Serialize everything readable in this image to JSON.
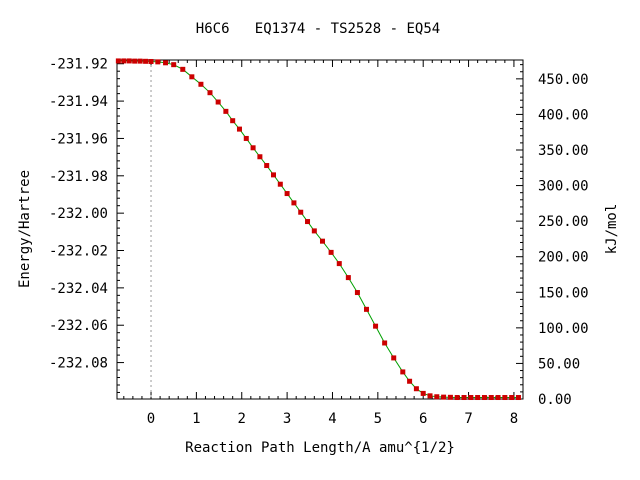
{
  "chart_data": {
    "type": "line",
    "title": "H6C6   EQ1374 - TS2528 - EQ54",
    "xlabel": "Reaction Path Length/A amu^{1/2}",
    "ylabel": "Energy/Hartree",
    "y2label": "kJ/mol",
    "xlim": [
      -0.75,
      8.2
    ],
    "ylim": [
      -232.0995,
      -231.918
    ],
    "y2lim": [
      0.0,
      476.5
    ],
    "x_ticks": [
      0,
      1,
      2,
      3,
      4,
      5,
      6,
      7,
      8
    ],
    "x_tick_labels": [
      "0",
      "1",
      "2",
      "3",
      "4",
      "5",
      "6",
      "7",
      "8"
    ],
    "y_ticks": [
      -231.92,
      -231.94,
      -231.96,
      -231.98,
      -232.0,
      -232.02,
      -232.04,
      -232.06,
      -232.08
    ],
    "y_tick_labels": [
      "-231.92",
      "-231.94",
      "-231.96",
      "-231.98",
      "-232.00",
      "-232.02",
      "-232.04",
      "-232.06",
      "-232.08"
    ],
    "y2_ticks": [
      0,
      50,
      100,
      150,
      200,
      250,
      300,
      350,
      400,
      450
    ],
    "y2_tick_labels": [
      "0.00",
      "50.00",
      "100.00",
      "150.00",
      "200.00",
      "250.00",
      "300.00",
      "350.00",
      "400.00",
      "450.00"
    ],
    "reference_line_x": 0,
    "colors": {
      "line": "#00a000",
      "marker": "#cc0000",
      "reference": "#999999",
      "axis": "#000000"
    },
    "series": [
      {
        "x": [
          -0.72,
          -0.6,
          -0.48,
          -0.36,
          -0.24,
          -0.12,
          0.0,
          0.15,
          0.32,
          0.5,
          0.7,
          0.9,
          1.1,
          1.3,
          1.48,
          1.65,
          1.8,
          1.95,
          2.1,
          2.25,
          2.4,
          2.55,
          2.7,
          2.85,
          3.0,
          3.15,
          3.3,
          3.45,
          3.6,
          3.78,
          3.97,
          4.15,
          4.35,
          4.55,
          4.75,
          4.95,
          5.15,
          5.35,
          5.55,
          5.7,
          5.85,
          6.0,
          6.15,
          6.3,
          6.45,
          6.6,
          6.75,
          6.9,
          7.05,
          7.2,
          7.35,
          7.5,
          7.65,
          7.8,
          7.95,
          8.1
        ],
        "y": [
          -231.9185,
          -231.9185,
          -231.9185,
          -231.9186,
          -231.9186,
          -231.9187,
          -231.9188,
          -231.919,
          -231.9195,
          -231.9205,
          -231.923,
          -231.927,
          -231.931,
          -231.9355,
          -231.9405,
          -231.9455,
          -231.9505,
          -231.955,
          -231.96,
          -231.965,
          -231.9698,
          -231.9745,
          -231.9795,
          -231.9845,
          -231.9895,
          -231.9945,
          -231.9995,
          -232.0045,
          -232.0095,
          -232.015,
          -232.021,
          -232.027,
          -232.0345,
          -232.0425,
          -232.0515,
          -232.0605,
          -232.0695,
          -232.0775,
          -232.085,
          -232.09,
          -232.094,
          -232.0965,
          -232.0978,
          -232.0983,
          -232.0985,
          -232.0986,
          -232.0987,
          -232.0987,
          -232.0987,
          -232.0987,
          -232.0987,
          -232.0987,
          -232.0987,
          -232.0987,
          -232.0987,
          -232.0987
        ]
      }
    ]
  }
}
